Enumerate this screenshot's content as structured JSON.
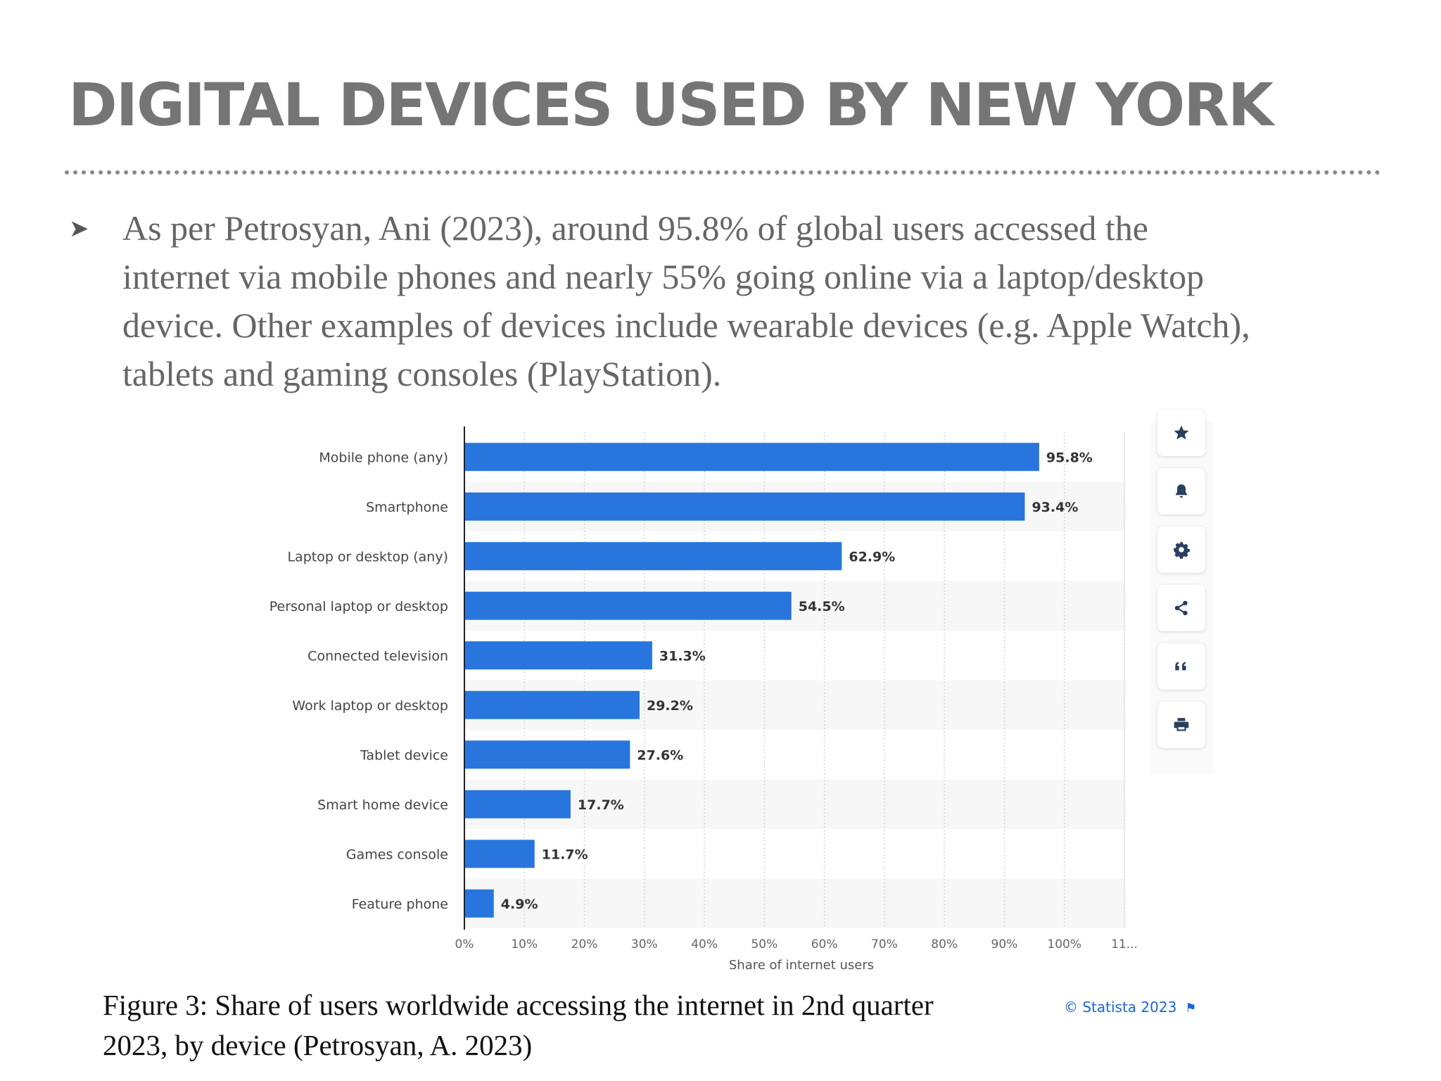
{
  "slide": {
    "title": "DIGITAL DEVICES USED BY NEW YORK",
    "bullet_lines": [
      "As per Petrosyan, Ani (2023), around 95.8% of global users accessed the",
      "internet via mobile phones and nearly 55% going online via a laptop/desktop",
      "device. Other examples of devices include wearable devices (e.g. Apple Watch),",
      "tablets and gaming consoles (PlayStation)."
    ],
    "caption_lines": [
      "Figure 3: Share of users worldwide accessing the internet in 2nd quarter",
      "2023, by device (Petrosyan, A. 2023)"
    ],
    "credit": "© Statista 2023"
  },
  "chart_data": {
    "type": "bar",
    "orientation": "horizontal",
    "categories": [
      "Mobile phone (any)",
      "Smartphone",
      "Laptop or desktop (any)",
      "Personal laptop or desktop",
      "Connected television",
      "Work laptop or desktop",
      "Tablet device",
      "Smart home device",
      "Games console",
      "Feature phone"
    ],
    "values": [
      95.8,
      93.4,
      62.9,
      54.5,
      31.3,
      29.2,
      27.6,
      17.7,
      11.7,
      4.9
    ],
    "value_labels": [
      "95.8%",
      "93.4%",
      "62.9%",
      "54.5%",
      "31.3%",
      "29.2%",
      "27.6%",
      "17.7%",
      "11.7%",
      "4.9%"
    ],
    "xlabel": "Share of internet users",
    "ylabel": "",
    "x_ticks": [
      "0%",
      "10%",
      "20%",
      "30%",
      "40%",
      "50%",
      "60%",
      "70%",
      "80%",
      "90%",
      "100%",
      "11..."
    ],
    "xlim": [
      0,
      110
    ],
    "grid": true,
    "bar_color": "#2876dd"
  },
  "side_icons": [
    "star-icon",
    "bell-icon",
    "gear-icon",
    "share-icon",
    "quote-icon",
    "print-icon"
  ]
}
